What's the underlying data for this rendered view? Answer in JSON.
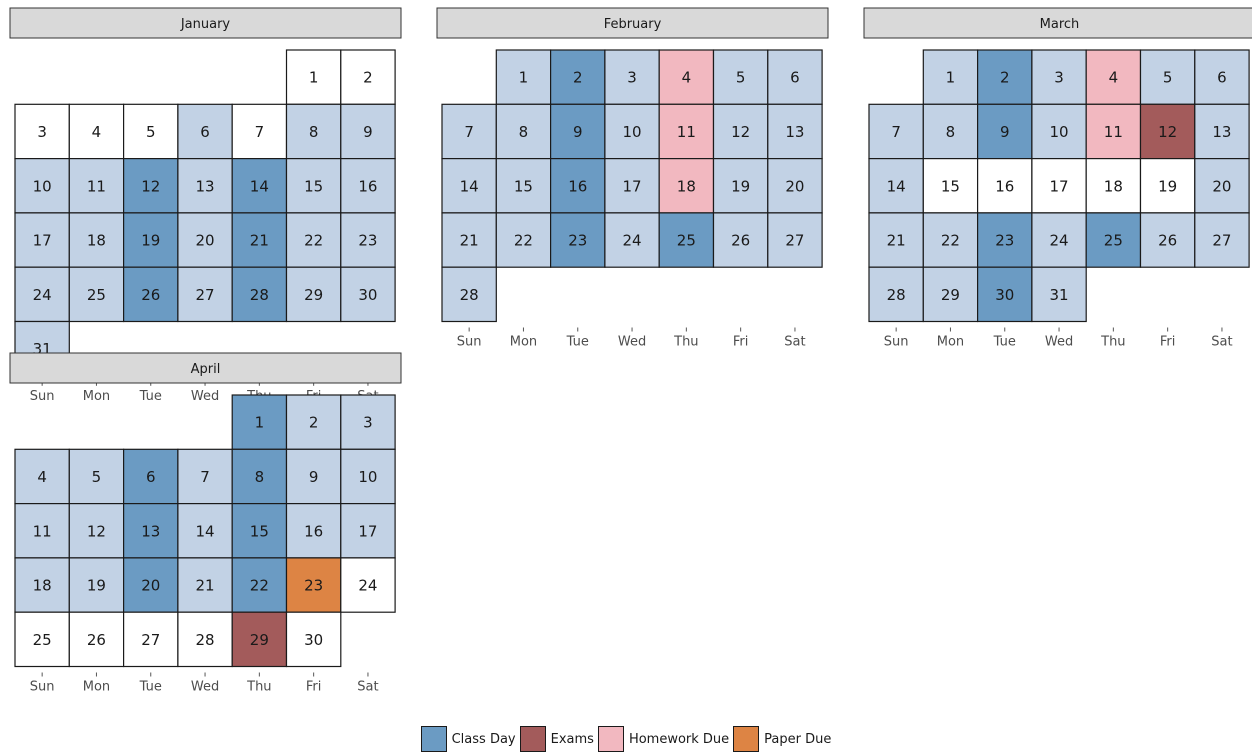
{
  "chart_data": {
    "type": "heatmap",
    "weekdays": [
      "Sun",
      "Mon",
      "Tue",
      "Wed",
      "Thu",
      "Fri",
      "Sat"
    ],
    "colors": {
      "class": "#6b9bc3",
      "semester": "#c2d2e5",
      "exam": "#a35b5b",
      "homework": "#f2b8c0",
      "paper": "#dd8444",
      "none": "#ffffff"
    },
    "legend": [
      {
        "key": "class",
        "label": "Class Day"
      },
      {
        "key": "exam",
        "label": "Exams"
      },
      {
        "key": "homework",
        "label": "Homework Due"
      },
      {
        "key": "paper",
        "label": "Paper Due"
      }
    ],
    "months": [
      {
        "name": "January",
        "first_weekday": 5,
        "days": 31,
        "semester": [
          6,
          8,
          9,
          10,
          11,
          13,
          15,
          16,
          17,
          18,
          20,
          22,
          23,
          24,
          25,
          27,
          29,
          30,
          31
        ],
        "class": [
          12,
          14,
          19,
          21,
          26,
          28
        ],
        "exam": [],
        "homework": [],
        "paper": []
      },
      {
        "name": "February",
        "first_weekday": 1,
        "days": 28,
        "semester": [
          1,
          3,
          5,
          6,
          7,
          8,
          10,
          12,
          13,
          14,
          15,
          17,
          19,
          20,
          21,
          22,
          24,
          26,
          27,
          28
        ],
        "class": [
          2,
          9,
          16,
          23,
          25
        ],
        "exam": [],
        "homework": [
          4,
          11,
          18
        ],
        "paper": []
      },
      {
        "name": "March",
        "first_weekday": 1,
        "days": 31,
        "semester": [
          1,
          3,
          5,
          6,
          7,
          8,
          10,
          13,
          14,
          20,
          21,
          22,
          24,
          26,
          27,
          28,
          29,
          31
        ],
        "class": [
          2,
          9,
          23,
          25,
          30
        ],
        "exam": [
          12
        ],
        "homework": [
          4,
          11
        ],
        "paper": []
      },
      {
        "name": "April",
        "first_weekday": 4,
        "days": 30,
        "semester": [
          2,
          3,
          4,
          5,
          7,
          9,
          10,
          11,
          12,
          14,
          16,
          17,
          18,
          19,
          21
        ],
        "class": [
          1,
          6,
          8,
          13,
          15,
          20,
          22
        ],
        "exam": [
          29
        ],
        "homework": [],
        "paper": [
          23
        ]
      }
    ]
  }
}
